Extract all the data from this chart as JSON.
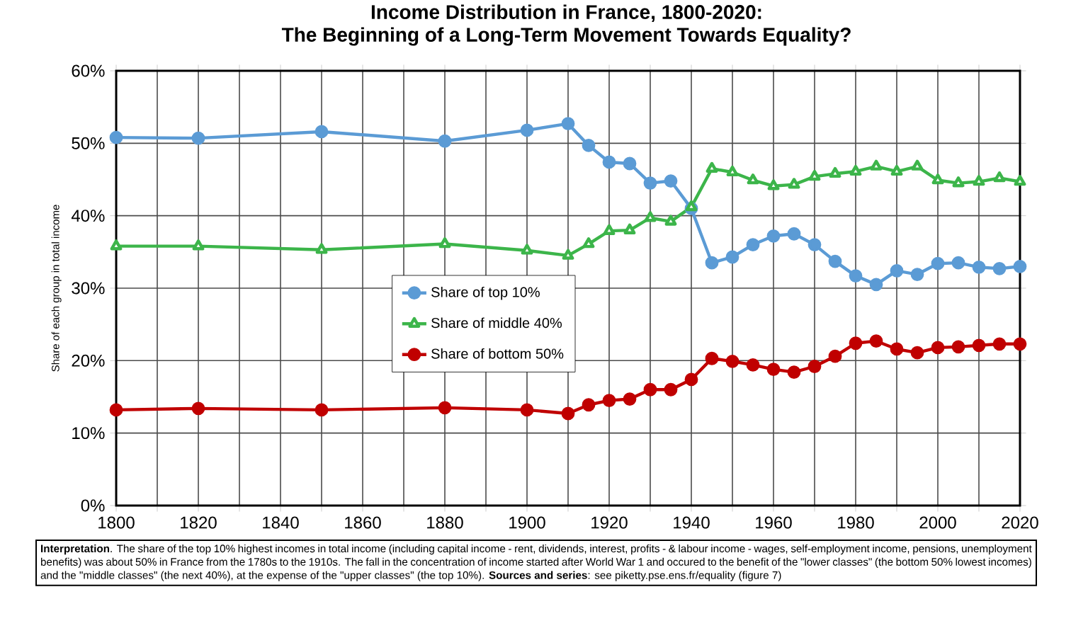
{
  "chart_data": {
    "type": "line",
    "title": "Income Distribution in France, 1800-2020:\nThe Beginning of a Long-Term Movement Towards Equality?",
    "ylabel": "Share of each group in total income",
    "x": [
      1800,
      1820,
      1850,
      1880,
      1900,
      1910,
      1915,
      1920,
      1925,
      1930,
      1935,
      1940,
      1945,
      1950,
      1955,
      1960,
      1965,
      1970,
      1975,
      1980,
      1985,
      1990,
      1995,
      2000,
      2005,
      2010,
      2015,
      2020
    ],
    "series": [
      {
        "name": "Share of top 10%",
        "color": "#5b9bd5",
        "marker": "circle",
        "values": [
          50.8,
          50.7,
          51.6,
          50.3,
          51.8,
          52.7,
          49.7,
          47.4,
          47.2,
          44.5,
          44.8,
          41.0,
          33.5,
          34.3,
          36.0,
          37.2,
          37.5,
          36.0,
          33.7,
          31.7,
          30.5,
          32.4,
          31.9,
          33.4,
          33.5,
          32.9,
          32.7,
          33.0
        ]
      },
      {
        "name": "Share of middle 40%",
        "color": "#3cb54a",
        "marker": "triangle",
        "values": [
          35.8,
          35.8,
          35.3,
          36.1,
          35.2,
          34.5,
          36.1,
          37.9,
          38.0,
          39.7,
          39.2,
          41.2,
          46.5,
          46.0,
          44.9,
          44.1,
          44.3,
          45.4,
          45.8,
          46.1,
          46.8,
          46.1,
          46.8,
          44.9,
          44.5,
          44.7,
          45.2,
          44.7
        ]
      },
      {
        "name": "Share of bottom 50%",
        "color": "#c00000",
        "marker": "circle",
        "values": [
          13.2,
          13.4,
          13.2,
          13.5,
          13.2,
          12.7,
          13.9,
          14.5,
          14.7,
          16.0,
          16.0,
          17.4,
          20.3,
          19.9,
          19.4,
          18.8,
          18.4,
          19.2,
          20.6,
          22.4,
          22.7,
          21.6,
          21.1,
          21.8,
          21.9,
          22.1,
          22.3,
          22.3
        ]
      }
    ],
    "xlim": [
      1800,
      2020
    ],
    "xticks": [
      1800,
      {
        "value": 1810,
        "label": null
      },
      1820,
      {
        "value": 1830,
        "label": null
      },
      1840,
      {
        "value": 1850,
        "label": null
      },
      1860,
      {
        "value": 1870,
        "label": null
      },
      1880,
      {
        "value": 1890,
        "label": null
      },
      1900,
      {
        "value": 1910,
        "label": null
      },
      1920,
      {
        "value": 1930,
        "label": null
      },
      1940,
      {
        "value": 1950,
        "label": null
      },
      1960,
      {
        "value": 1970,
        "label": null
      },
      1980,
      {
        "value": 1990,
        "label": null
      },
      2000,
      {
        "value": 2010,
        "label": null
      },
      2020
    ],
    "ylim": [
      0,
      60
    ],
    "yticks": [
      {
        "value": 0,
        "label": "0%"
      },
      {
        "value": 10,
        "label": "10%"
      },
      {
        "value": 20,
        "label": "20%"
      },
      {
        "value": 30,
        "label": "30%"
      },
      {
        "value": 40,
        "label": "40%"
      },
      {
        "value": 50,
        "label": "50%"
      },
      {
        "value": 60,
        "label": "60%"
      }
    ],
    "grid": true,
    "legend": "center",
    "annotations": [
      "**Interpretation**. The share of the top 10% highest incomes in total income (including capital income - rent, dividends, interest, profits - & labour income - wages, self-employment income, pensions, unemployment benefits) was about 50% in France from the 1780s to the 1910s. The fall in the concentration of income started after World War 1 and occured to the benefit of the \"lower classes\" (the bottom 50% lowest incomes) and the \"middle classes\" (the next 40%), at the expense of the \"upper classes\" (the top 10%). **Sources and series**: see piketty.pse.ens.fr/equality (figure 7)"
    ]
  }
}
